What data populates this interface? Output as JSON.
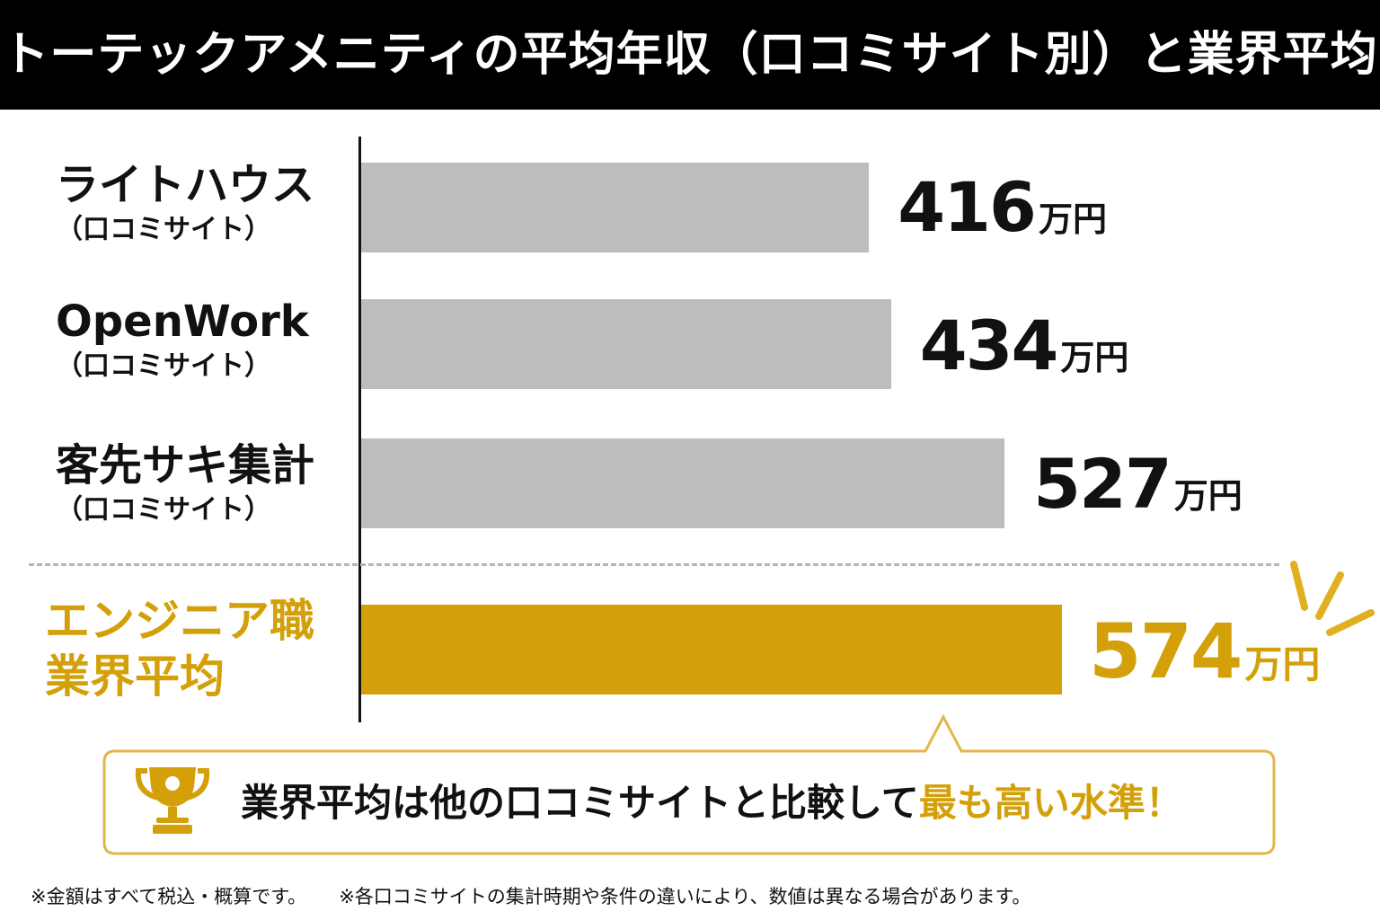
{
  "header": {
    "title": "トーテックアメニティの平均年収（口コミサイト別）と業界平均"
  },
  "chart_data": {
    "type": "bar",
    "orientation": "horizontal",
    "unit": "万円",
    "categories": [
      {
        "name": "ライトハウス",
        "sub": "（口コミサイト）"
      },
      {
        "name": "OpenWork",
        "sub": "（口コミサイト）"
      },
      {
        "name": "客先サキ集計",
        "sub": "（口コミサイト）"
      }
    ],
    "values": [
      416,
      434,
      527
    ],
    "highlight": {
      "name_line1": "エンジニア職",
      "name_line2": "業界平均",
      "value": 574
    },
    "xlim": [
      0,
      574
    ],
    "grid": false,
    "colors": {
      "bar": "#bdbdbd",
      "highlight": "#d4a00a"
    }
  },
  "callout": {
    "text_main": "業界平均は他の口コミサイトと比較して",
    "text_emphasis": "最も高い水準！",
    "icon": "trophy-icon"
  },
  "footnotes": [
    "※金額はすべて税込・概算です。",
    "※各口コミサイトの集計時期や条件の違いにより、数値は異なる場合があります。"
  ]
}
